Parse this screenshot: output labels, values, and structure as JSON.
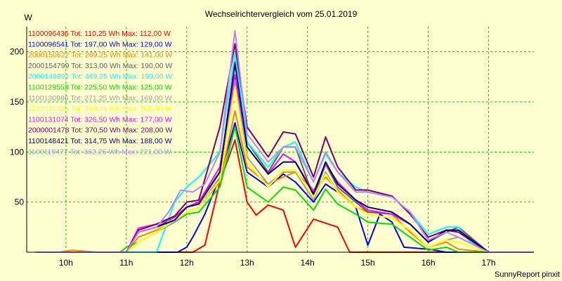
{
  "chart_data": {
    "type": "line",
    "title": "Wechselrichtervergleich vom 25.01.2019",
    "ylabel": "W",
    "xlabel": "",
    "footer": "SunnyReport pinxit",
    "ylim": [
      0,
      225
    ],
    "yticks": [
      50,
      100,
      150,
      200
    ],
    "xlim": [
      9.35,
      17.75
    ],
    "xticks": [
      10,
      11,
      12,
      13,
      14,
      15,
      16,
      17
    ],
    "xtick_labels": [
      "10h",
      "11h",
      "12h",
      "13h",
      "14h",
      "15h",
      "16h",
      "17h"
    ],
    "grid": true,
    "background": "#ffffd0",
    "legend_position": "top-left",
    "series": [
      {
        "name": "1100096436",
        "label": "1100096436 Tot: 110,25 Wh Max: 112,00 W",
        "color": "#ff0000",
        "x": [
          9.5,
          10.0,
          10.5,
          11.0,
          11.5,
          12.0,
          12.1,
          12.3,
          12.55,
          12.8,
          13.0,
          13.15,
          13.35,
          13.6,
          13.8,
          14.1,
          14.5,
          14.7,
          15.0,
          15.5,
          16.0,
          16.5,
          17.0,
          17.75
        ],
        "y": [
          0,
          0,
          0,
          0,
          0,
          0,
          0,
          7,
          70,
          112,
          50,
          37,
          47,
          42,
          5,
          33,
          25,
          0,
          0,
          0,
          0,
          0,
          0,
          0
        ]
      },
      {
        "name": "1100096541",
        "label": "1100096541 Tot: 197,00 Wh Max: 129,00 W",
        "color": "#0000ff",
        "x": [
          9.5,
          10.0,
          10.5,
          11.0,
          11.5,
          11.85,
          12.0,
          12.1,
          12.3,
          12.55,
          12.8,
          13.0,
          13.35,
          13.6,
          13.8,
          14.1,
          14.3,
          14.5,
          14.8,
          15.0,
          15.2,
          15.4,
          15.6,
          16.0,
          16.3,
          16.5,
          17.0,
          17.75
        ],
        "y": [
          0,
          0,
          0,
          0,
          0,
          0,
          5,
          15,
          38,
          75,
          129,
          80,
          65,
          78,
          70,
          50,
          68,
          60,
          45,
          7,
          38,
          30,
          5,
          3,
          0,
          0,
          0,
          0
        ]
      },
      {
        "name": "2000150622",
        "label": "2000150622 Tot: 269,25 Wh Max: 141,00 W",
        "color": "#ff8000",
        "x": [
          9.5,
          9.9,
          10.1,
          10.5,
          10.9,
          11.0,
          11.2,
          11.5,
          11.8,
          12.0,
          12.2,
          12.55,
          12.8,
          13.0,
          13.35,
          13.6,
          13.8,
          14.1,
          14.3,
          14.5,
          14.8,
          15.0,
          15.4,
          15.7,
          16.0,
          16.3,
          16.5,
          17.0,
          17.75
        ],
        "y": [
          0,
          0,
          2,
          0,
          0,
          0,
          15,
          22,
          30,
          40,
          45,
          70,
          141,
          85,
          68,
          75,
          80,
          62,
          75,
          62,
          45,
          40,
          38,
          20,
          5,
          10,
          3,
          0,
          0
        ]
      },
      {
        "name": "2000154799",
        "label": "2000154799 Tot: 313,00 Wh Max: 190,00 W",
        "color": "#606060",
        "x": [
          9.5,
          10.0,
          10.5,
          11.0,
          11.2,
          11.5,
          11.8,
          12.0,
          12.2,
          12.55,
          12.8,
          13.0,
          13.35,
          13.6,
          13.8,
          14.1,
          14.3,
          14.5,
          14.8,
          15.0,
          15.4,
          15.7,
          16.0,
          16.3,
          16.5,
          17.0,
          17.75
        ],
        "y": [
          0,
          0,
          0,
          0,
          20,
          25,
          35,
          45,
          50,
          80,
          190,
          110,
          80,
          105,
          105,
          55,
          88,
          65,
          50,
          40,
          38,
          28,
          10,
          20,
          25,
          0,
          0
        ]
      },
      {
        "name": "2000149892",
        "label": "2000149892 Tot: 369,25 Wh Max: 199,00 W",
        "color": "#00ffff",
        "x": [
          9.5,
          10.0,
          10.5,
          11.0,
          11.5,
          11.8,
          12.0,
          12.2,
          12.55,
          12.8,
          13.0,
          13.35,
          13.6,
          13.8,
          14.1,
          14.3,
          14.5,
          14.8,
          15.0,
          15.4,
          15.7,
          16.0,
          16.3,
          16.5,
          16.7,
          17.0,
          17.75
        ],
        "y": [
          0,
          0,
          0,
          0,
          0,
          50,
          65,
          75,
          100,
          199,
          110,
          85,
          105,
          110,
          70,
          98,
          80,
          65,
          60,
          55,
          40,
          18,
          25,
          25,
          10,
          0,
          0
        ]
      },
      {
        "name": "1100129553",
        "label": "1100129553 Tot: 225,50 Wh Max: 125,00 W",
        "color": "#00e000",
        "x": [
          9.5,
          10.0,
          10.5,
          10.9,
          11.0,
          11.2,
          11.5,
          11.8,
          12.0,
          12.2,
          12.55,
          12.8,
          13.0,
          13.35,
          13.6,
          13.8,
          14.1,
          14.3,
          14.5,
          14.8,
          15.0,
          15.4,
          15.7,
          16.0,
          16.3,
          16.5,
          17.0,
          17.75
        ],
        "y": [
          0,
          0,
          0,
          0,
          5,
          10,
          20,
          30,
          38,
          40,
          65,
          125,
          65,
          50,
          65,
          62,
          42,
          63,
          48,
          38,
          30,
          28,
          15,
          2,
          5,
          0,
          0,
          0
        ]
      },
      {
        "name": "1100130986",
        "label": "1100130986 Tot: 271,25 Wh Max: 169,00 W",
        "color": "#a0a0a0",
        "x": [
          9.5,
          10.0,
          10.5,
          11.0,
          11.2,
          11.5,
          11.8,
          12.0,
          12.2,
          12.55,
          12.8,
          13.0,
          13.35,
          13.6,
          13.8,
          14.1,
          14.3,
          14.5,
          14.8,
          15.0,
          15.4,
          15.7,
          16.0,
          16.3,
          16.5,
          17.0,
          17.75
        ],
        "y": [
          0,
          0,
          0,
          0,
          10,
          20,
          30,
          40,
          45,
          75,
          169,
          95,
          68,
          80,
          80,
          52,
          80,
          60,
          45,
          38,
          34,
          22,
          5,
          12,
          15,
          0,
          0
        ]
      },
      {
        "name": "1100131025",
        "label": "1100131025 Tot: 269,25 Wh Max: 165,00 W",
        "color": "#ffff00",
        "x": [
          9.5,
          10.0,
          10.5,
          11.0,
          11.2,
          11.5,
          11.8,
          12.0,
          12.2,
          12.55,
          12.8,
          13.0,
          13.35,
          13.6,
          13.8,
          14.1,
          14.3,
          14.5,
          14.8,
          15.0,
          15.4,
          15.7,
          16.0,
          16.3,
          16.5,
          17.0,
          17.75
        ],
        "y": [
          0,
          0,
          0,
          0,
          10,
          20,
          32,
          40,
          45,
          72,
          165,
          90,
          65,
          82,
          82,
          55,
          78,
          60,
          45,
          38,
          34,
          22,
          5,
          12,
          10,
          0,
          0
        ]
      },
      {
        "name": "1100131074",
        "label": "1100131074 Tot: 326,50 Wh Max: 177,00 W",
        "color": "#ff00ff",
        "x": [
          9.5,
          10.0,
          10.5,
          11.0,
          11.2,
          11.5,
          11.8,
          12.0,
          12.2,
          12.55,
          12.8,
          13.0,
          13.35,
          13.6,
          13.8,
          14.1,
          14.3,
          14.5,
          14.8,
          15.0,
          15.4,
          15.7,
          16.0,
          16.3,
          16.5,
          17.0,
          17.75
        ],
        "y": [
          0,
          0,
          0,
          0,
          24,
          28,
          35,
          45,
          50,
          85,
          177,
          105,
          78,
          98,
          90,
          60,
          88,
          70,
          52,
          42,
          38,
          28,
          10,
          22,
          22,
          0,
          0
        ]
      },
      {
        "name": "2000001478",
        "label": "2000001478 Tot: 370,50 Wh Max: 208,00 W",
        "color": "#800060",
        "x": [
          9.5,
          10.0,
          10.5,
          11.0,
          11.2,
          11.5,
          11.8,
          12.0,
          12.2,
          12.55,
          12.8,
          13.0,
          13.35,
          13.6,
          13.8,
          14.1,
          14.3,
          14.5,
          14.8,
          15.0,
          15.4,
          15.7,
          16.0,
          16.3,
          16.5,
          17.0,
          17.75
        ],
        "y": [
          0,
          0,
          0,
          0,
          22,
          28,
          36,
          50,
          52,
          125,
          208,
          125,
          95,
          120,
          118,
          75,
          115,
          85,
          62,
          62,
          56,
          38,
          15,
          22,
          20,
          0,
          0
        ]
      },
      {
        "name": "1100148421",
        "label": "1100148421 Tot: 314,75 Wh Max: 188,00 W",
        "color": "#000080",
        "x": [
          9.5,
          10.0,
          10.5,
          11.0,
          11.2,
          11.5,
          11.8,
          12.0,
          12.2,
          12.55,
          12.8,
          13.0,
          13.35,
          13.6,
          13.8,
          14.1,
          14.3,
          14.5,
          14.8,
          15.0,
          15.4,
          15.7,
          16.0,
          16.3,
          16.5,
          17.0,
          17.75
        ],
        "y": [
          0,
          0,
          0,
          0,
          20,
          25,
          32,
          45,
          48,
          80,
          188,
          105,
          78,
          90,
          90,
          58,
          90,
          68,
          52,
          45,
          40,
          28,
          10,
          22,
          22,
          0,
          0
        ]
      },
      {
        "name": "1100119477",
        "label": "1100119477 Tot: 362,25 Wh Max: 221,00 W",
        "color": "#c080ff",
        "x": [
          9.5,
          10.0,
          10.5,
          11.0,
          11.2,
          11.5,
          11.7,
          11.9,
          12.1,
          12.3,
          12.55,
          12.8,
          13.0,
          13.35,
          13.6,
          13.8,
          14.1,
          14.3,
          14.5,
          14.8,
          15.0,
          15.4,
          15.7,
          16.0,
          16.3,
          16.5,
          17.0,
          17.75
        ],
        "y": [
          0,
          0,
          0,
          0,
          20,
          25,
          40,
          62,
          60,
          68,
          100,
          221,
          118,
          90,
          105,
          105,
          70,
          100,
          80,
          60,
          60,
          55,
          40,
          12,
          20,
          15,
          0,
          0
        ]
      }
    ]
  }
}
